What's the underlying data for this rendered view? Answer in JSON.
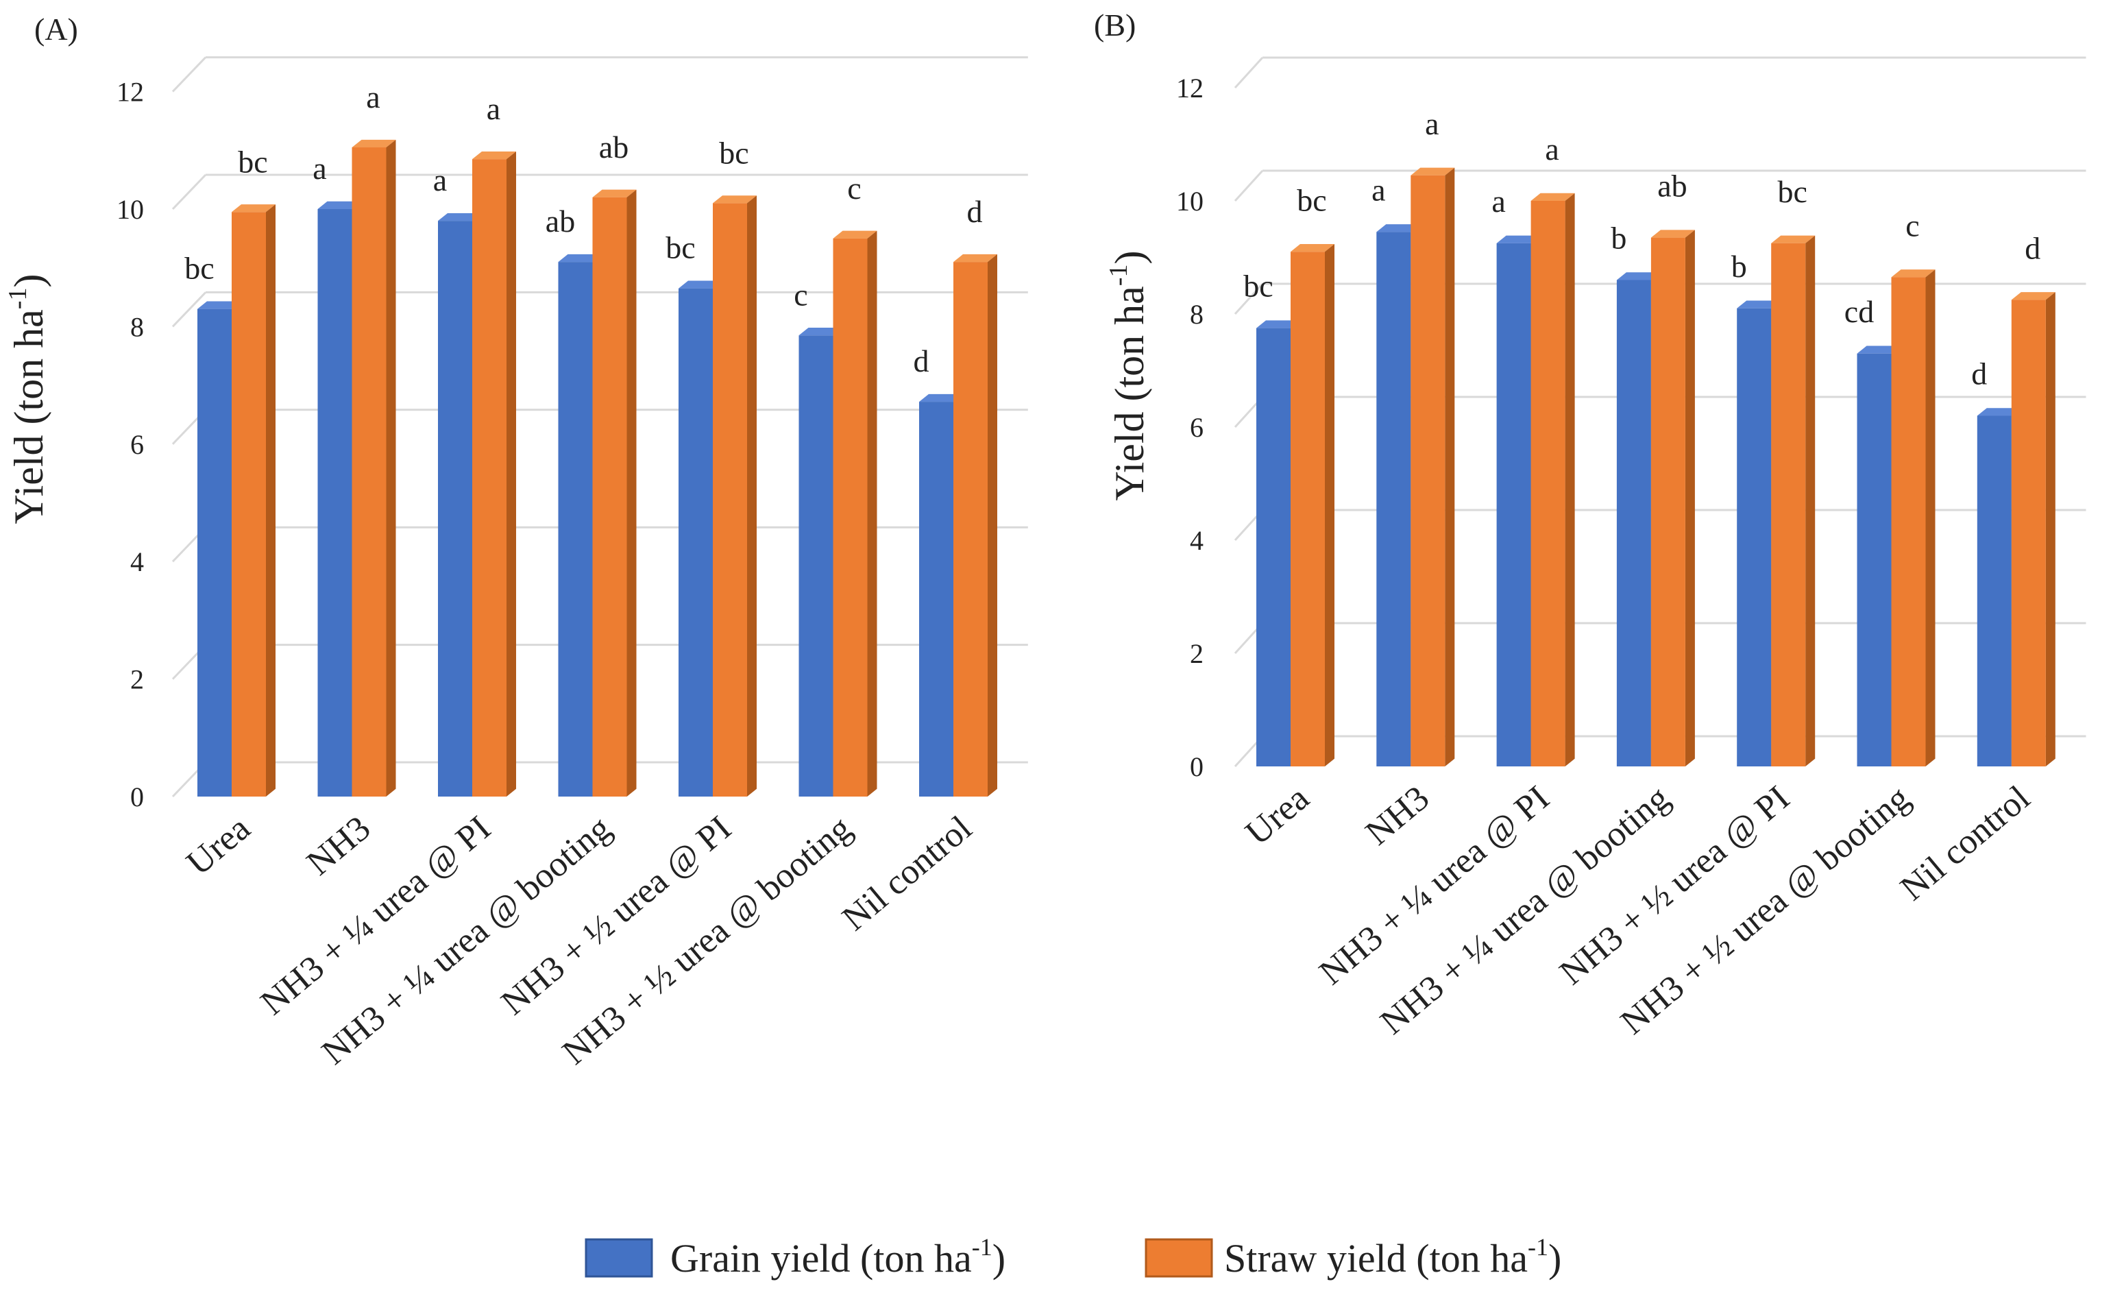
{
  "colors": {
    "grain": "#4472c4",
    "grain_top": "#5b86d6",
    "grain_side": "#2f5597",
    "straw": "#ed7d31",
    "straw_top": "#f4994f",
    "straw_side": "#b15a1b"
  },
  "legend": {
    "grain_prefix": "Grain yield (ton ha",
    "straw_prefix": "Straw yield (ton ha",
    "exponent": "-1",
    "suffix": ")"
  },
  "chart_data": [
    {
      "panel_label": "(A)",
      "type": "bar",
      "ylabel": "Yield (ton ha",
      "ylabel_exponent": "-1",
      "ylabel_suffix": ")",
      "ylim": [
        0,
        12
      ],
      "yticks": [
        "0",
        "2",
        "4",
        "6",
        "8",
        "10",
        "12"
      ],
      "categories": [
        "Urea",
        "NH3",
        "NH3 + ¼ urea @ PI",
        "NH3 + ¼ urea @ booting",
        "NH3 + ½ urea @ PI",
        "NH3 + ½ urea @ booting",
        "Nil control"
      ],
      "series": [
        {
          "name": "Grain yield",
          "values": [
            8.3,
            10.0,
            9.8,
            9.1,
            8.65,
            7.85,
            6.72
          ],
          "letters": [
            "bc",
            "a",
            "a",
            "ab",
            "bc",
            "c",
            "d"
          ]
        },
        {
          "name": "Straw yield",
          "values": [
            9.95,
            11.05,
            10.85,
            10.2,
            10.1,
            9.5,
            9.1
          ],
          "letters": [
            "bc",
            "a",
            "a",
            "ab",
            "bc",
            "c",
            "d"
          ]
        }
      ]
    },
    {
      "panel_label": "(B)",
      "type": "bar",
      "ylabel": "Yield (ton ha",
      "ylabel_exponent": "-1",
      "ylabel_suffix": ")",
      "ylim": [
        0,
        12
      ],
      "yticks": [
        "0",
        "2",
        "4",
        "6",
        "8",
        "10",
        "12"
      ],
      "categories": [
        "Urea",
        "NH3",
        "NH3 + ¼ urea @ PI",
        "NH3 + ¼ urea @ booting",
        "NH3 + ½ urea @ PI",
        "NH3 + ½ urea @ booting",
        "Nil control"
      ],
      "series": [
        {
          "name": "Grain yield",
          "values": [
            7.75,
            9.45,
            9.25,
            8.6,
            8.1,
            7.3,
            6.2
          ],
          "letters": [
            "bc",
            "a",
            "a",
            "b",
            "b",
            "cd",
            "d"
          ]
        },
        {
          "name": "Straw yield",
          "values": [
            9.1,
            10.45,
            10.0,
            9.35,
            9.25,
            8.65,
            8.25
          ],
          "letters": [
            "bc",
            "a",
            "a",
            "ab",
            "bc",
            "c",
            "d"
          ]
        }
      ]
    }
  ]
}
